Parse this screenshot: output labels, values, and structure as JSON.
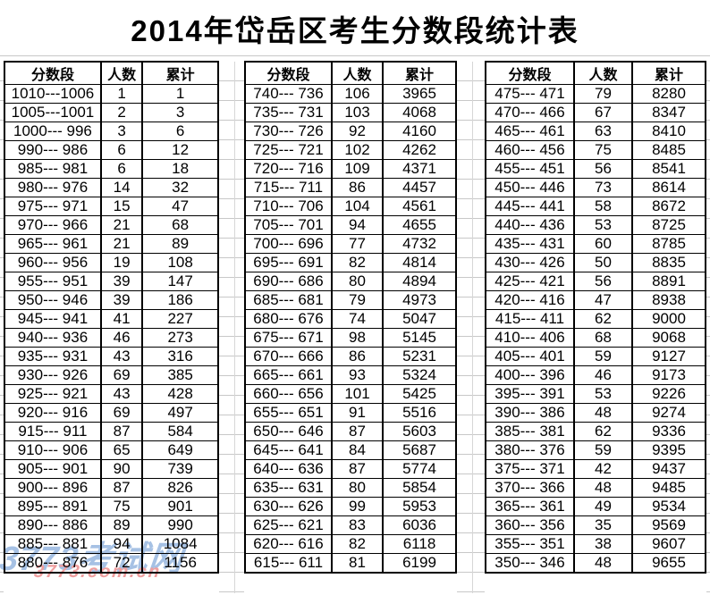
{
  "title": "2014年岱岳区考生分数段统计表",
  "tables": [
    {
      "headers": [
        "分数段",
        "人数",
        "累计"
      ],
      "rows": [
        [
          "1010---1006",
          "1",
          "1"
        ],
        [
          "1005---1001",
          "2",
          "3"
        ],
        [
          "1000--- 996",
          "3",
          "6"
        ],
        [
          "990--- 986",
          "6",
          "12"
        ],
        [
          "985--- 981",
          "6",
          "18"
        ],
        [
          "980--- 976",
          "14",
          "32"
        ],
        [
          "975--- 971",
          "15",
          "47"
        ],
        [
          "970--- 966",
          "21",
          "68"
        ],
        [
          "965--- 961",
          "21",
          "89"
        ],
        [
          "960--- 956",
          "19",
          "108"
        ],
        [
          "955--- 951",
          "39",
          "147"
        ],
        [
          "950--- 946",
          "39",
          "186"
        ],
        [
          "945--- 941",
          "41",
          "227"
        ],
        [
          "940--- 936",
          "46",
          "273"
        ],
        [
          "935--- 931",
          "43",
          "316"
        ],
        [
          "930--- 926",
          "69",
          "385"
        ],
        [
          "925--- 921",
          "43",
          "428"
        ],
        [
          "920--- 916",
          "69",
          "497"
        ],
        [
          "915--- 911",
          "87",
          "584"
        ],
        [
          "910--- 906",
          "65",
          "649"
        ],
        [
          "905--- 901",
          "90",
          "739"
        ],
        [
          "900--- 896",
          "87",
          "826"
        ],
        [
          "895--- 891",
          "75",
          "901"
        ],
        [
          "890--- 886",
          "89",
          "990"
        ],
        [
          "885--- 881",
          "94",
          "1084"
        ],
        [
          "880--- 876",
          "72",
          "1156"
        ]
      ]
    },
    {
      "headers": [
        "分数段",
        "人数",
        "累计"
      ],
      "rows": [
        [
          "740--- 736",
          "106",
          "3965"
        ],
        [
          "735--- 731",
          "103",
          "4068"
        ],
        [
          "730--- 726",
          "92",
          "4160"
        ],
        [
          "725--- 721",
          "102",
          "4262"
        ],
        [
          "720--- 716",
          "109",
          "4371"
        ],
        [
          "715--- 711",
          "86",
          "4457"
        ],
        [
          "710--- 706",
          "104",
          "4561"
        ],
        [
          "705--- 701",
          "94",
          "4655"
        ],
        [
          "700--- 696",
          "77",
          "4732"
        ],
        [
          "695--- 691",
          "82",
          "4814"
        ],
        [
          "690--- 686",
          "80",
          "4894"
        ],
        [
          "685--- 681",
          "79",
          "4973"
        ],
        [
          "680--- 676",
          "74",
          "5047"
        ],
        [
          "675--- 671",
          "98",
          "5145"
        ],
        [
          "670--- 666",
          "86",
          "5231"
        ],
        [
          "665--- 661",
          "93",
          "5324"
        ],
        [
          "660--- 656",
          "101",
          "5425"
        ],
        [
          "655--- 651",
          "91",
          "5516"
        ],
        [
          "650--- 646",
          "87",
          "5603"
        ],
        [
          "645--- 641",
          "84",
          "5687"
        ],
        [
          "640--- 636",
          "87",
          "5774"
        ],
        [
          "635--- 631",
          "80",
          "5854"
        ],
        [
          "630--- 626",
          "99",
          "5953"
        ],
        [
          "625--- 621",
          "83",
          "6036"
        ],
        [
          "620--- 616",
          "82",
          "6118"
        ],
        [
          "615--- 611",
          "81",
          "6199"
        ]
      ]
    },
    {
      "headers": [
        "分数段",
        "人数",
        "累计"
      ],
      "rows": [
        [
          "475--- 471",
          "79",
          "8280"
        ],
        [
          "470--- 466",
          "67",
          "8347"
        ],
        [
          "465--- 461",
          "63",
          "8410"
        ],
        [
          "460--- 456",
          "75",
          "8485"
        ],
        [
          "455--- 451",
          "56",
          "8541"
        ],
        [
          "450--- 446",
          "73",
          "8614"
        ],
        [
          "445--- 441",
          "58",
          "8672"
        ],
        [
          "440--- 436",
          "53",
          "8725"
        ],
        [
          "435--- 431",
          "60",
          "8785"
        ],
        [
          "430--- 426",
          "50",
          "8835"
        ],
        [
          "425--- 421",
          "56",
          "8891"
        ],
        [
          "420--- 416",
          "47",
          "8938"
        ],
        [
          "415--- 411",
          "62",
          "9000"
        ],
        [
          "410--- 406",
          "68",
          "9068"
        ],
        [
          "405--- 401",
          "59",
          "9127"
        ],
        [
          "400--- 396",
          "46",
          "9173"
        ],
        [
          "395--- 391",
          "53",
          "9226"
        ],
        [
          "390--- 386",
          "48",
          "9274"
        ],
        [
          "385--- 381",
          "62",
          "9336"
        ],
        [
          "380--- 376",
          "59",
          "9395"
        ],
        [
          "375--- 371",
          "42",
          "9437"
        ],
        [
          "370--- 366",
          "48",
          "9485"
        ],
        [
          "365--- 361",
          "49",
          "9534"
        ],
        [
          "360--- 356",
          "35",
          "9569"
        ],
        [
          "355--- 351",
          "38",
          "9607"
        ],
        [
          "350--- 346",
          "48",
          "9655"
        ]
      ]
    }
  ],
  "watermark": {
    "line1": "3773考试网",
    "line2": "3773.com.cn",
    "blue_color": "#a6c1e4",
    "red_color": "#ef9e9e"
  },
  "colors": {
    "table_border": "#000000",
    "gridline": "#c8c8c8",
    "background": "#ffffff"
  }
}
